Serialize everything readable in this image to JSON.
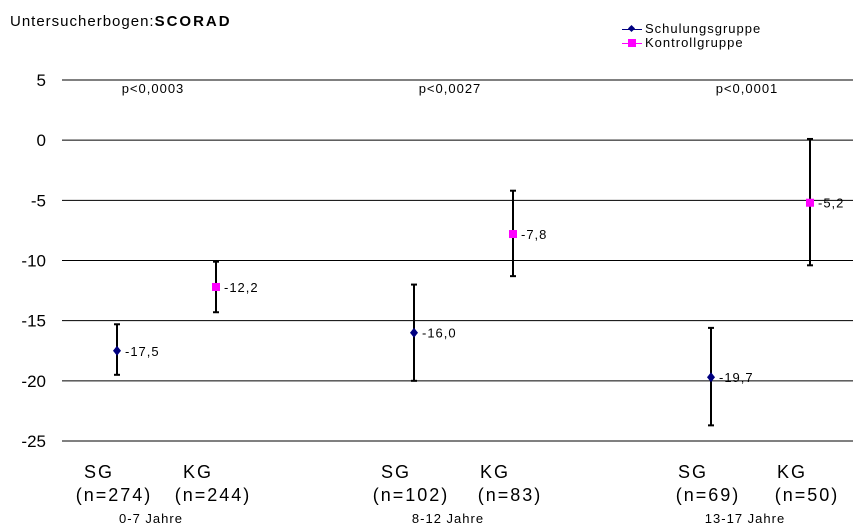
{
  "title": {
    "prefix": "Untersucherbogen:",
    "main": "SCORAD"
  },
  "colors": {
    "schulungsgruppe": "#000080",
    "kontrollgruppe": "#ff00ff",
    "grid": "#000000",
    "errorbar": "#000000"
  },
  "chart_data": {
    "type": "scatter",
    "title": "Untersucherbogen:SCORAD",
    "xlabel": "",
    "ylabel": "",
    "ylim": [
      -25,
      5
    ],
    "yticks": [
      5,
      0,
      -5,
      -10,
      -15,
      -20,
      -25
    ],
    "grid": true,
    "legend_position": "top-right",
    "legend": [
      {
        "name": "Schulungsgruppe",
        "marker": "diamond",
        "color": "#000080"
      },
      {
        "name": "Kontrollgruppe",
        "marker": "square",
        "color": "#ff00ff"
      }
    ],
    "age_groups": [
      {
        "label": "0-7 Jahre",
        "p_value": "p<0,0003"
      },
      {
        "label": "8-12 Jahre",
        "p_value": "p<0,0027"
      },
      {
        "label": "13-17 Jahre",
        "p_value": "p<0,0001"
      }
    ],
    "points": [
      {
        "series": "Schulungsgruppe",
        "group_index": 0,
        "cat": "SG",
        "n": "(n=274)",
        "value": -17.5,
        "label": "-17,5",
        "err_low": -19.5,
        "err_high": -15.3
      },
      {
        "series": "Kontrollgruppe",
        "group_index": 0,
        "cat": "KG",
        "n": "(n=244)",
        "value": -12.2,
        "label": "-12,2",
        "err_low": -14.3,
        "err_high": -10.1
      },
      {
        "series": "Schulungsgruppe",
        "group_index": 1,
        "cat": "SG",
        "n": "(n=102)",
        "value": -16.0,
        "label": "-16,0",
        "err_low": -20.0,
        "err_high": -12.0
      },
      {
        "series": "Kontrollgruppe",
        "group_index": 1,
        "cat": "KG",
        "n": "(n=83)",
        "value": -7.8,
        "label": "-7,8",
        "err_low": -11.3,
        "err_high": -4.2
      },
      {
        "series": "Schulungsgruppe",
        "group_index": 2,
        "cat": "SG",
        "n": "(n=69)",
        "value": -19.7,
        "label": "-19,7",
        "err_low": -23.7,
        "err_high": -15.6
      },
      {
        "series": "Kontrollgruppe",
        "group_index": 2,
        "cat": "KG",
        "n": "(n=50)",
        "value": -5.2,
        "label": "-5,2",
        "err_low": -10.4,
        "err_high": 0.1
      }
    ]
  }
}
